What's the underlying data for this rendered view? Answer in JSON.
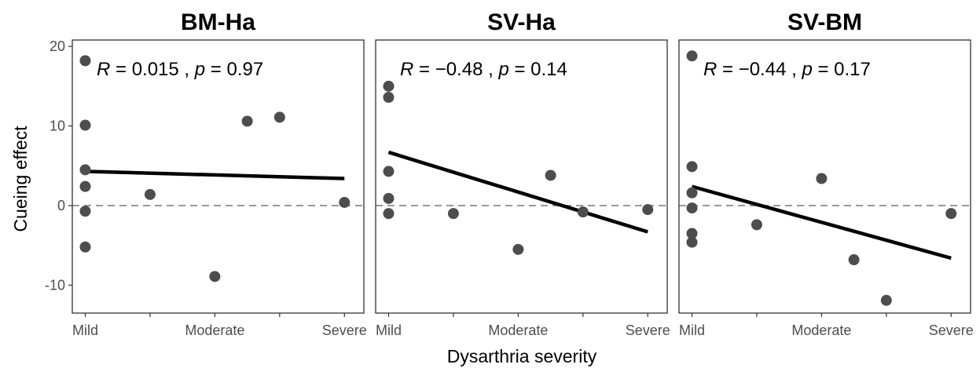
{
  "chart_data": {
    "type": "scatter",
    "xlabel": "Dysarthria severity",
    "ylabel": "Cueing effect",
    "xlim": [
      0.8,
      5.3
    ],
    "ylim": [
      -13.5,
      20.8
    ],
    "x_ticks": [
      1,
      2,
      3,
      4,
      5
    ],
    "x_tick_labels": [
      "Mild",
      "",
      "Moderate",
      "",
      "Severe"
    ],
    "y_ticks": [
      -10,
      0,
      10,
      20
    ],
    "y_tick_labels": [
      "-10",
      "0",
      "10",
      "20"
    ],
    "reference_line": {
      "y": 0,
      "style": "dashed"
    },
    "grid": false,
    "panels": [
      {
        "title": "BM-Ha",
        "annotation": {
          "r_symbol": "R",
          "r_value": "0.015",
          "sep": ",",
          "p_symbol": "p",
          "p_value": "0.97"
        },
        "points": [
          {
            "x": 1,
            "y": 18.2
          },
          {
            "x": 1,
            "y": 10.1
          },
          {
            "x": 1,
            "y": 4.5
          },
          {
            "x": 1,
            "y": 2.4
          },
          {
            "x": 1,
            "y": -0.7
          },
          {
            "x": 1,
            "y": -5.2
          },
          {
            "x": 2,
            "y": 1.4
          },
          {
            "x": 3,
            "y": -8.9
          },
          {
            "x": 3.5,
            "y": 10.6
          },
          {
            "x": 4,
            "y": 11.1
          },
          {
            "x": 5,
            "y": 0.4
          }
        ],
        "fit": {
          "x0": 1,
          "y0": 4.3,
          "x1": 5,
          "y1": 3.4
        }
      },
      {
        "title": "SV-Ha",
        "annotation": {
          "r_symbol": "R",
          "r_value": "−0.48",
          "sep": ",",
          "p_symbol": "p",
          "p_value": "0.14"
        },
        "points": [
          {
            "x": 1,
            "y": 15.0
          },
          {
            "x": 1,
            "y": 13.6
          },
          {
            "x": 1,
            "y": 4.3
          },
          {
            "x": 1,
            "y": 0.9
          },
          {
            "x": 1,
            "y": -1.0
          },
          {
            "x": 2,
            "y": -1.0
          },
          {
            "x": 3,
            "y": -5.5
          },
          {
            "x": 3.5,
            "y": 3.8
          },
          {
            "x": 4,
            "y": -0.8
          },
          {
            "x": 5,
            "y": -0.5
          }
        ],
        "fit": {
          "x0": 1,
          "y0": 6.7,
          "x1": 5,
          "y1": -3.3
        }
      },
      {
        "title": "SV-BM",
        "annotation": {
          "r_symbol": "R",
          "r_value": "−0.44",
          "sep": ",",
          "p_symbol": "p",
          "p_value": "0.17"
        },
        "points": [
          {
            "x": 1,
            "y": 18.8
          },
          {
            "x": 1,
            "y": 4.9
          },
          {
            "x": 1,
            "y": 1.6
          },
          {
            "x": 1,
            "y": -0.3
          },
          {
            "x": 1,
            "y": -3.5
          },
          {
            "x": 1,
            "y": -4.6
          },
          {
            "x": 2,
            "y": -2.4
          },
          {
            "x": 3,
            "y": 3.4
          },
          {
            "x": 3.5,
            "y": -6.8
          },
          {
            "x": 4,
            "y": -11.9
          },
          {
            "x": 5,
            "y": -1.0
          }
        ],
        "fit": {
          "x0": 1,
          "y0": 2.4,
          "x1": 5,
          "y1": -6.6
        }
      }
    ]
  },
  "colors": {
    "point": "#4d4d4d",
    "fit_line": "#000000",
    "reference_line": "#999999",
    "panel_border": "#333333",
    "tick": "#333333"
  }
}
